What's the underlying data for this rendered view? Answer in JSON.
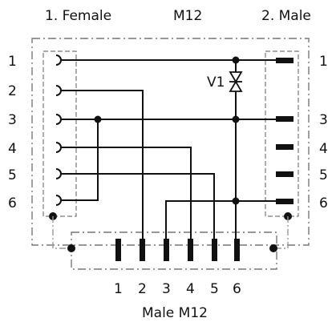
{
  "header": {
    "female_label": "1. Female",
    "center_label": "M12",
    "male_label": "2. Male"
  },
  "female_pins": [
    "1",
    "2",
    "3",
    "4",
    "5",
    "6"
  ],
  "male_pins": [
    "1",
    "3",
    "4",
    "5",
    "6"
  ],
  "bottom_pins": [
    "1",
    "2",
    "3",
    "4",
    "5",
    "6"
  ],
  "bottom_label": "Male M12",
  "diode_label": "V1"
}
